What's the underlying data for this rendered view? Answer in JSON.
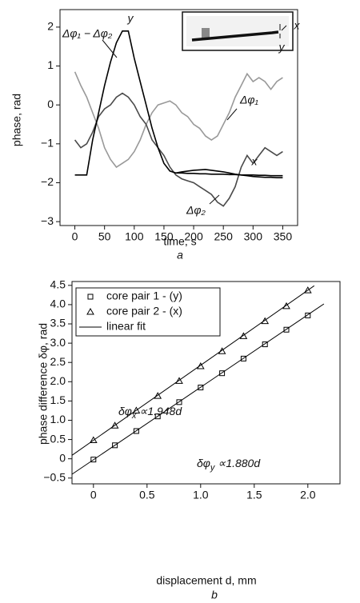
{
  "chart_data": [
    {
      "type": "line",
      "x_label": "time, s",
      "y_label": "phase, rad",
      "panel": "a",
      "x": [
        0,
        10,
        20,
        30,
        40,
        50,
        60,
        70,
        80,
        90,
        100,
        110,
        120,
        130,
        140,
        150,
        160,
        170,
        180,
        190,
        200,
        210,
        220,
        230,
        240,
        250,
        260,
        270,
        280,
        290,
        300,
        310,
        320,
        330,
        340,
        350
      ],
      "series": [
        {
          "name": "Δφ₁",
          "color": "#999999",
          "values": [
            0.85,
            0.5,
            0.2,
            -0.2,
            -0.6,
            -1.1,
            -1.4,
            -1.6,
            -1.5,
            -1.4,
            -1.2,
            -0.9,
            -0.5,
            -0.2,
            0.0,
            0.05,
            0.1,
            0.0,
            -0.2,
            -0.3,
            -0.5,
            -0.6,
            -0.8,
            -0.9,
            -0.8,
            -0.5,
            -0.2,
            0.2,
            0.5,
            0.8,
            0.6,
            0.7,
            0.6,
            0.4,
            0.6,
            0.7
          ]
        },
        {
          "name": "Δφ₂",
          "color": "#4a4a4a",
          "values": [
            -0.9,
            -1.1,
            -1.0,
            -0.7,
            -0.3,
            -0.1,
            0.0,
            0.2,
            0.3,
            0.2,
            0.0,
            -0.3,
            -0.5,
            -0.9,
            -1.1,
            -1.3,
            -1.6,
            -1.8,
            -1.9,
            -1.95,
            -2.0,
            -2.1,
            -2.2,
            -2.3,
            -2.5,
            -2.6,
            -2.4,
            -2.1,
            -1.6,
            -1.3,
            -1.5,
            -1.3,
            -1.1,
            -1.2,
            -1.3,
            -1.2
          ]
        },
        {
          "name": "Δφ₁ − Δφ₂",
          "color": "#000000",
          "values": [
            -1.8,
            -1.8,
            -1.8,
            -0.9,
            -0.2,
            0.5,
            1.1,
            1.6,
            1.9,
            1.9,
            1.2,
            0.6,
            0.0,
            -0.6,
            -1.1,
            -1.5,
            -1.7,
            -1.75,
            -1.75,
            -1.76,
            -1.76,
            -1.77,
            -1.77,
            -1.78,
            -1.78,
            -1.78,
            -1.79,
            -1.79,
            -1.8,
            -1.8,
            -1.8,
            -1.81,
            -1.81,
            -1.82,
            -1.82,
            -1.82
          ]
        },
        {
          "name": "x",
          "color": "#000000",
          "values": [
            null,
            null,
            null,
            null,
            null,
            null,
            null,
            null,
            null,
            null,
            null,
            null,
            null,
            null,
            null,
            null,
            null,
            -1.75,
            -1.72,
            -1.7,
            -1.68,
            -1.67,
            -1.66,
            -1.68,
            -1.7,
            -1.72,
            -1.75,
            -1.78,
            -1.8,
            -1.82,
            -1.84,
            -1.85,
            -1.86,
            -1.86,
            -1.87,
            -1.87
          ]
        }
      ],
      "annotations": [
        "y",
        "x",
        "y"
      ],
      "xlim": [
        -25,
        375
      ],
      "xticks": [
        0,
        50,
        100,
        150,
        200,
        250,
        300,
        350
      ],
      "ylim": [
        -3.1,
        2.45
      ],
      "yticks": [
        {
          "value": -3,
          "label": "−3"
        },
        {
          "value": -2,
          "label": "−2"
        },
        {
          "value": -1,
          "label": "−1"
        },
        0,
        1,
        2
      ]
    },
    {
      "type": "scatter",
      "x_label": "displacement d, mm",
      "y_label": "phase difference δφ, rad",
      "panel": "b",
      "x": [
        0,
        0.2,
        0.4,
        0.6,
        0.8,
        1.0,
        1.2,
        1.4,
        1.6,
        1.8,
        2.0
      ],
      "series": [
        {
          "name": "core pair 1 - (y)",
          "marker": "square",
          "color": "#000000",
          "values": [
            -0.02,
            0.35,
            0.72,
            1.1,
            1.47,
            1.85,
            2.22,
            2.6,
            2.97,
            3.35,
            3.72
          ]
        },
        {
          "name": "core pair 2 - (x)",
          "marker": "triangle",
          "color": "#000000",
          "values": [
            0.48,
            0.86,
            1.25,
            1.63,
            2.02,
            2.4,
            2.79,
            3.18,
            3.57,
            3.96,
            4.37
          ]
        },
        {
          "name": "linear fit",
          "color": "#000000",
          "segments": [
            {
              "x": [
                -0.2,
                2.15
              ],
              "values": [
                -0.4,
                4.02
              ]
            },
            {
              "x": [
                -0.2,
                2.06
              ],
              "values": [
                0.09,
                4.49
              ]
            }
          ]
        }
      ],
      "annotations": [
        {
          "main": "δφ",
          "sub": "x",
          "rest": " ∝1.948d"
        },
        {
          "main": "δφ",
          "sub": "y",
          "rest": " ∝1.880d"
        }
      ],
      "legend": "upper left",
      "xlim": [
        -0.2,
        2.3
      ],
      "xticks": [
        0,
        0.5,
        {
          "value": 1,
          "label": "1.0"
        },
        1.5,
        {
          "value": 2,
          "label": "2.0"
        }
      ],
      "ylim": [
        -0.65,
        4.6
      ],
      "yticks": [
        {
          "value": -0.5,
          "label": "−0.5"
        },
        0,
        0.5,
        {
          "value": 1,
          "label": "1.0"
        },
        1.5,
        {
          "value": 2,
          "label": "2.0"
        },
        2.5,
        {
          "value": 3,
          "label": "3.0"
        },
        3.5,
        {
          "value": 4,
          "label": "4.0"
        },
        4.5
      ]
    }
  ]
}
